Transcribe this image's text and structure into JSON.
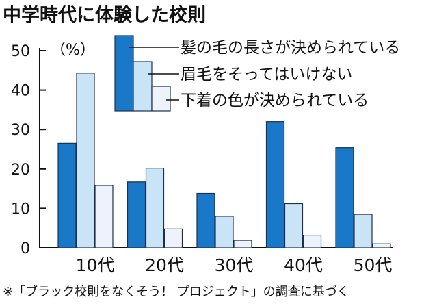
{
  "chart_data": {
    "type": "bar",
    "title": "中学時代に体験した校則",
    "unit_label": "（%）",
    "xlabel": "",
    "ylabel": "",
    "ylim": [
      0,
      50
    ],
    "yticks": [
      0,
      10,
      20,
      30,
      40,
      50
    ],
    "grid": false,
    "legend_position": "top-right",
    "categories": [
      "10代",
      "20代",
      "30代",
      "40代",
      "50代"
    ],
    "series": [
      {
        "name": "髪の毛の長さが決められている",
        "color": "#1a78c8",
        "values": [
          26.5,
          16.7,
          13.8,
          32.0,
          25.4
        ]
      },
      {
        "name": "眉毛をそってはいけない",
        "color": "#c9e4f7",
        "values": [
          44.3,
          20.2,
          8.0,
          11.2,
          8.5
        ]
      },
      {
        "name": "下着の色が決められている",
        "color": "#eef3fb",
        "values": [
          15.8,
          4.8,
          1.9,
          3.2,
          1.0
        ]
      }
    ],
    "note": "※「ブラック校則をなくそう！ プロジェクト」の調査に基づく"
  }
}
